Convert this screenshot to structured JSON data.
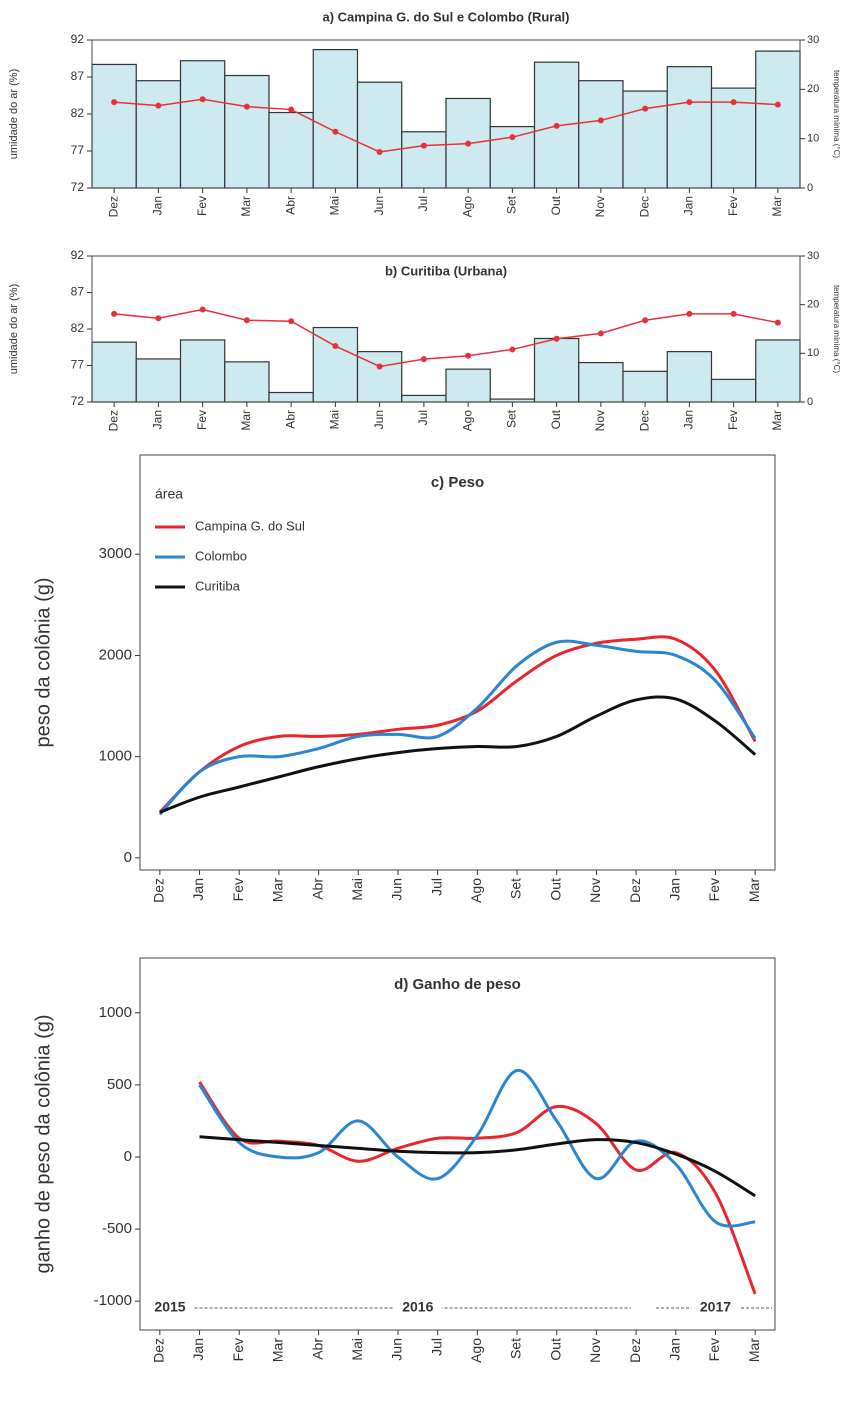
{
  "chart_data": [
    {
      "type": "bar",
      "title": "a) Campina G. do Sul e Colombo   (Rural)",
      "ylabel": "umidade do ar (%)",
      "y2label": "temperatura mínima (°C)",
      "categories": [
        "Dez",
        "Jan",
        "Fev",
        "Mar",
        "Abr",
        "Mai",
        "Jun",
        "Jul",
        "Ago",
        "Set",
        "Out",
        "Nov",
        "Dec",
        "Jan",
        "Fev",
        "Mar"
      ],
      "series": [
        {
          "color": "#cdeaf0",
          "values": [
            88.7,
            86.5,
            89.2,
            87.2,
            82.2,
            90.7,
            86.3,
            79.6,
            84.1,
            80.3,
            89.0,
            86.5,
            85.1,
            88.4,
            85.5,
            90.5
          ]
        },
        {
          "color": "#e8303a",
          "axis": "y2",
          "values": [
            17.4,
            16.7,
            18.0,
            16.5,
            15.9,
            11.4,
            7.3,
            8.6,
            9.0,
            10.3,
            12.6,
            13.7,
            16.1,
            17.4,
            17.4,
            16.9
          ]
        }
      ],
      "ylim": [
        72,
        92
      ],
      "yticks": [
        72,
        77,
        82,
        87,
        92
      ],
      "y2lim": [
        0,
        30
      ],
      "y2ticks": [
        0,
        10,
        20,
        30
      ]
    },
    {
      "type": "bar",
      "title": "b) Curitiba  (Urbana)",
      "ylabel": "umidade do ar (%)",
      "y2label": "temperatura mínima (°C)",
      "categories": [
        "Dez",
        "Jan",
        "Fev",
        "Mar",
        "Abr",
        "Mai",
        "Jun",
        "Jul",
        "Ago",
        "Set",
        "Out",
        "Nov",
        "Dec",
        "Jan",
        "Fev",
        "Mar"
      ],
      "series": [
        {
          "color": "#cdeaf0",
          "values": [
            80.2,
            77.9,
            80.5,
            77.5,
            73.3,
            82.2,
            78.9,
            72.9,
            76.5,
            72.4,
            80.7,
            77.4,
            76.2,
            78.9,
            75.1,
            80.5
          ]
        },
        {
          "color": "#e8303a",
          "axis": "y2",
          "values": [
            18.1,
            17.2,
            19.0,
            16.8,
            16.6,
            11.5,
            7.3,
            8.8,
            9.5,
            10.8,
            13.0,
            14.1,
            16.8,
            18.1,
            18.1,
            16.3
          ]
        }
      ],
      "ylim": [
        72,
        92
      ],
      "yticks": [
        72,
        77,
        82,
        87,
        92
      ],
      "y2lim": [
        0,
        30
      ],
      "y2ticks": [
        0,
        10,
        20,
        30
      ]
    },
    {
      "type": "line",
      "title": "c) Peso",
      "ylabel": "peso da colônia (g)",
      "legend_title": "área",
      "categories": [
        "Dez",
        "Jan",
        "Fev",
        "Mar",
        "Abr",
        "Mai",
        "Jun",
        "Jul",
        "Ago",
        "Set",
        "Out",
        "Nov",
        "Dez",
        "Jan",
        "Fev",
        "Mar"
      ],
      "series": [
        {
          "name": "Campina G. do Sul",
          "color": "#e8262b",
          "values": [
            450,
            850,
            1100,
            1200,
            1200,
            1220,
            1270,
            1310,
            1450,
            1750,
            2000,
            2120,
            2160,
            2160,
            1850,
            1150
          ]
        },
        {
          "name": "Colombo",
          "color": "#2a86d1",
          "values": [
            430,
            850,
            1000,
            1000,
            1080,
            1200,
            1220,
            1200,
            1480,
            1900,
            2130,
            2100,
            2040,
            2000,
            1750,
            1180
          ]
        },
        {
          "name": "Curitiba",
          "color": "#111111",
          "values": [
            450,
            600,
            700,
            800,
            900,
            980,
            1040,
            1080,
            1100,
            1100,
            1200,
            1400,
            1560,
            1570,
            1350,
            1020
          ]
        }
      ],
      "ylim": [
        -120,
        3980
      ],
      "yticks": [
        0,
        1000,
        2000,
        3000
      ]
    },
    {
      "type": "line",
      "title": "d) Ganho de peso",
      "ylabel": "ganho de peso da colônia (g)",
      "categories": [
        "Dez",
        "Jan",
        "Fev",
        "Mar",
        "Abr",
        "Mai",
        "Jun",
        "Jul",
        "Ago",
        "Set",
        "Out",
        "Nov",
        "Dez",
        "Jan",
        "Fev",
        "Mar"
      ],
      "series": [
        {
          "color": "#e8262b",
          "values": [
            null,
            520,
            130,
            110,
            80,
            -30,
            60,
            130,
            130,
            170,
            350,
            230,
            -90,
            30,
            -250,
            -950
          ]
        },
        {
          "color": "#2a86d1",
          "values": [
            null,
            500,
            100,
            0,
            30,
            250,
            0,
            -150,
            150,
            600,
            250,
            -150,
            110,
            -50,
            -450,
            -450
          ]
        },
        {
          "color": "#111111",
          "values": [
            null,
            140,
            120,
            100,
            80,
            60,
            40,
            30,
            30,
            50,
            90,
            120,
            100,
            20,
            -100,
            -270
          ]
        }
      ],
      "annotations": [
        "2015",
        "2016",
        "2017"
      ],
      "ylim": [
        -1200,
        1380
      ],
      "yticks": [
        -1000,
        -500,
        0,
        500,
        1000
      ]
    }
  ]
}
